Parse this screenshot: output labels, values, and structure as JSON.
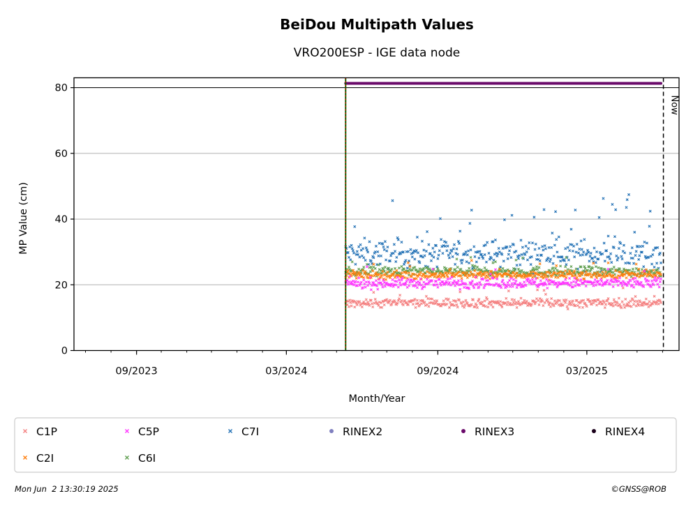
{
  "chart_data": {
    "type": "scatter",
    "title": "BeiDou Multipath Values",
    "subtitle": "VRO200ESP - IGE data node",
    "xlabel": "Month/Year",
    "ylabel": "MP Value (cm)",
    "xlim": [
      "2023-06-17",
      "2025-06-21"
    ],
    "ylim": [
      0,
      83
    ],
    "yticks": [
      0,
      20,
      40,
      60,
      80
    ],
    "xticks": [
      {
        "date": "2023-09-01",
        "label": "09/2023"
      },
      {
        "date": "2024-03-01",
        "label": "03/2024"
      },
      {
        "date": "2024-09-01",
        "label": "09/2024"
      },
      {
        "date": "2025-03-01",
        "label": "03/2025"
      }
    ],
    "grid": "horizontal",
    "start_date": "2024-05-12",
    "end_date": "2025-05-30",
    "now_date": "2025-06-02",
    "now_label": "Now",
    "series": [
      {
        "name": "C1P",
        "color": "#f47f7f",
        "marker": "x",
        "mean": 14.5,
        "spread": 1.2,
        "outlier_pct": 0.02,
        "outlier_amp": 3
      },
      {
        "name": "C2I",
        "color": "#ff7f0e",
        "marker": "x",
        "mean": 23.0,
        "spread": 1.0,
        "outlier_pct": 0.03,
        "outlier_amp": 3
      },
      {
        "name": "C5P",
        "color": "#ff33ff",
        "marker": "x",
        "mean": 20.5,
        "spread": 1.3,
        "outlier_pct": 0.03,
        "outlier_amp": 3
      },
      {
        "name": "C6I",
        "color": "#5f9e4f",
        "marker": "x",
        "mean": 24.0,
        "spread": 1.3,
        "outlier_pct": 0.04,
        "outlier_amp": 3
      },
      {
        "name": "C7I",
        "color": "#1f6fb4",
        "marker": "x",
        "mean": 29.5,
        "spread": 3.5,
        "outlier_pct": 0.05,
        "outlier_amp": 10
      },
      {
        "name": "RINEX2",
        "color": "#7f7fbf",
        "marker": "o",
        "constant": null
      },
      {
        "name": "RINEX3",
        "color": "#6a0a6a",
        "marker": "o",
        "constant": 81.3
      },
      {
        "name": "RINEX4",
        "color": "#1a001a",
        "marker": "o",
        "constant": null
      }
    ],
    "legend_order": [
      "C1P",
      "C5P",
      "C7I",
      "RINEX2",
      "RINEX3",
      "RINEX4",
      "C2I",
      "C6I"
    ],
    "legend_position": "bottom"
  },
  "footer": {
    "timestamp": "Mon Jun  2 13:30:19 2025",
    "credit": "©GNSS@ROB"
  }
}
